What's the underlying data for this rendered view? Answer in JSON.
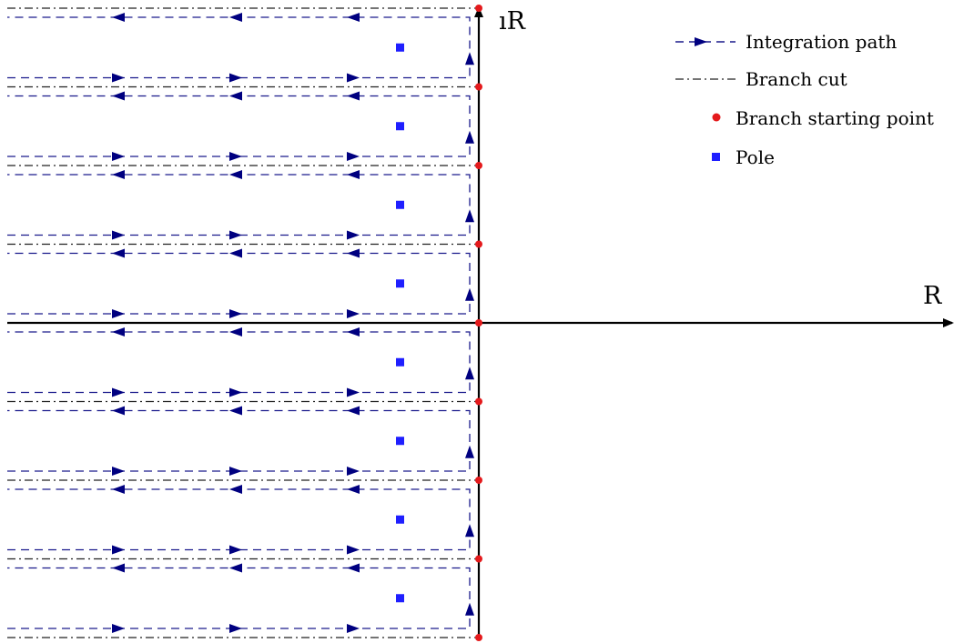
{
  "axes": {
    "real_label": "R",
    "imag_label": "ıR"
  },
  "legend": {
    "position": "top-right",
    "entries": [
      {
        "id": "integration-path",
        "label": "Integration path",
        "symbol": "dashed-arrow"
      },
      {
        "id": "branch-cut",
        "label": "Branch cut",
        "symbol": "dash-dot"
      },
      {
        "id": "branch-point",
        "label": "Branch starting point",
        "symbol": "circle"
      },
      {
        "id": "pole",
        "label": "Pole",
        "symbol": "square"
      }
    ]
  },
  "colors": {
    "path": "#1a1a8c",
    "arrow": "#000080",
    "branch_cut": "#222222",
    "branch_point": "#e41a1c",
    "pole": "#1f1fff",
    "axis": "#000000"
  },
  "diagram": {
    "branch_point_levels": [
      4,
      3,
      2,
      1,
      0,
      -1,
      -2,
      -3,
      -4
    ],
    "pole_levels": [
      3.5,
      2.5,
      1.5,
      0.5,
      -0.5,
      -1.5,
      -2.5,
      -3.5
    ]
  }
}
